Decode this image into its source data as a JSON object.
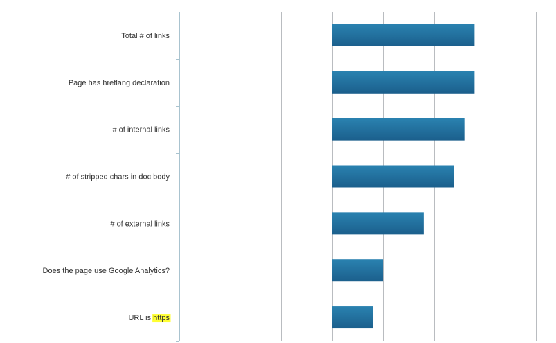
{
  "chart_data": {
    "type": "bar",
    "orientation": "horizontal",
    "categories": [
      "Total # of links",
      "Page has hreflang declaration",
      "# of internal links",
      "# of stripped chars in doc body",
      "# of external links",
      "Does the page use Google Analytics?",
      "URL is https"
    ],
    "values": [
      2.8,
      2.8,
      2.6,
      2.4,
      1.8,
      1.0,
      0.8
    ],
    "xlim": [
      -3.0,
      4.4
    ],
    "gridlines_x": [
      -2,
      -1,
      0,
      1,
      2,
      3,
      4
    ],
    "grid": true,
    "bar_color_top": "#2a82b0",
    "bar_color_bottom": "#1b5f8c",
    "highlight": {
      "category_index": 6,
      "text": "https",
      "color": "#ffff33"
    },
    "title": "",
    "xlabel": "",
    "ylabel": ""
  }
}
